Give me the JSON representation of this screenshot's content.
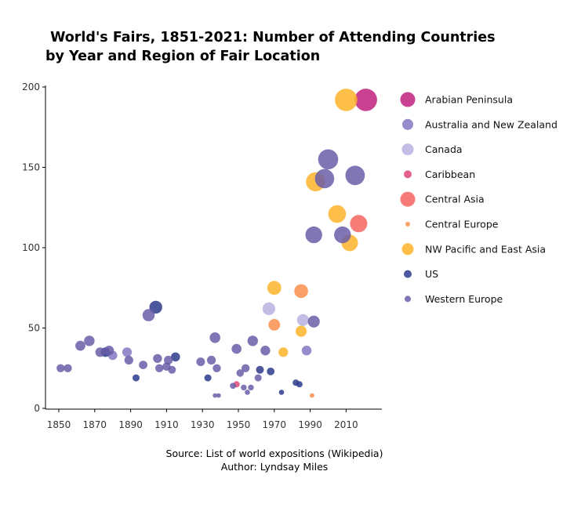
{
  "chart_data": {
    "type": "scatter",
    "title": " World's Fairs, 1851-2021: Number of Attending Countries\nby Year and Region of Fair Location",
    "xlabel": "",
    "ylabel": "",
    "xlim": [
      1845,
      2030
    ],
    "ylim": [
      0,
      200
    ],
    "xticks": [
      1850,
      1870,
      1890,
      1910,
      1930,
      1950,
      1970,
      1990,
      2010
    ],
    "yticks": [
      0,
      50,
      100,
      150,
      200
    ],
    "grid": false,
    "legend_position": "right",
    "size_encodes": "number of attending countries",
    "series": [
      {
        "name": "Arabian Peninsula",
        "color": "#c2207e",
        "points": [
          {
            "x": 2021,
            "y": 192
          }
        ]
      },
      {
        "name": "Australia and New Zealand",
        "color": "#8478c2",
        "points": [
          {
            "x": 1880,
            "y": 33
          },
          {
            "x": 1888,
            "y": 35
          },
          {
            "x": 1988,
            "y": 36
          }
        ]
      },
      {
        "name": "Canada",
        "color": "#b8b0e0",
        "points": [
          {
            "x": 1967,
            "y": 62
          },
          {
            "x": 1986,
            "y": 55
          }
        ]
      },
      {
        "name": "Caribbean",
        "color": "#e0457a",
        "points": [
          {
            "x": 1949,
            "y": 15
          }
        ]
      },
      {
        "name": "Central Asia",
        "color": "#f6645e",
        "points": [
          {
            "x": 2017,
            "y": 115
          }
        ]
      },
      {
        "name": "Central Europe",
        "color": "#f98e4b",
        "points": [
          {
            "x": 1970,
            "y": 52
          },
          {
            "x": 1985,
            "y": 73
          },
          {
            "x": 1991,
            "y": 8
          }
        ]
      },
      {
        "name": "NW Pacific and East Asia",
        "color": "#fdb32a",
        "points": [
          {
            "x": 1970,
            "y": 75
          },
          {
            "x": 1975,
            "y": 35
          },
          {
            "x": 1985,
            "y": 48
          },
          {
            "x": 1993,
            "y": 141
          },
          {
            "x": 2005,
            "y": 121
          },
          {
            "x": 2010,
            "y": 192
          },
          {
            "x": 2012,
            "y": 103
          }
        ]
      },
      {
        "name": "US",
        "color": "#2c3b8c",
        "points": [
          {
            "x": 1876,
            "y": 35
          },
          {
            "x": 1893,
            "y": 19
          },
          {
            "x": 1904,
            "y": 63
          },
          {
            "x": 1915,
            "y": 32
          },
          {
            "x": 1933,
            "y": 19
          },
          {
            "x": 1962,
            "y": 24
          },
          {
            "x": 1968,
            "y": 23
          },
          {
            "x": 1974,
            "y": 10
          },
          {
            "x": 1982,
            "y": 16
          },
          {
            "x": 1984,
            "y": 15
          }
        ]
      },
      {
        "name": "Western Europe",
        "color": "#6a5da8",
        "points": [
          {
            "x": 1851,
            "y": 25
          },
          {
            "x": 1855,
            "y": 25
          },
          {
            "x": 1862,
            "y": 39
          },
          {
            "x": 1867,
            "y": 42
          },
          {
            "x": 1873,
            "y": 35
          },
          {
            "x": 1878,
            "y": 36
          },
          {
            "x": 1889,
            "y": 30
          },
          {
            "x": 1897,
            "y": 27
          },
          {
            "x": 1900,
            "y": 58
          },
          {
            "x": 1905,
            "y": 31
          },
          {
            "x": 1906,
            "y": 25
          },
          {
            "x": 1910,
            "y": 26
          },
          {
            "x": 1911,
            "y": 30
          },
          {
            "x": 1913,
            "y": 24
          },
          {
            "x": 1929,
            "y": 29
          },
          {
            "x": 1935,
            "y": 30
          },
          {
            "x": 1937,
            "y": 44
          },
          {
            "x": 1938,
            "y": 25
          },
          {
            "x": 1937,
            "y": 8
          },
          {
            "x": 1939,
            "y": 8
          },
          {
            "x": 1947,
            "y": 14
          },
          {
            "x": 1949,
            "y": 37
          },
          {
            "x": 1951,
            "y": 22
          },
          {
            "x": 1953,
            "y": 13
          },
          {
            "x": 1954,
            "y": 25
          },
          {
            "x": 1955,
            "y": 10
          },
          {
            "x": 1957,
            "y": 13
          },
          {
            "x": 1958,
            "y": 42
          },
          {
            "x": 1961,
            "y": 19
          },
          {
            "x": 1965,
            "y": 36
          },
          {
            "x": 1992,
            "y": 108
          },
          {
            "x": 1992,
            "y": 54
          },
          {
            "x": 1998,
            "y": 143
          },
          {
            "x": 2000,
            "y": 155
          },
          {
            "x": 2008,
            "y": 108
          },
          {
            "x": 2015,
            "y": 145
          }
        ]
      }
    ]
  },
  "caption": {
    "source": "Source: List of world expositions (Wikipedia)",
    "author": "Author: Lyndsay Miles"
  }
}
